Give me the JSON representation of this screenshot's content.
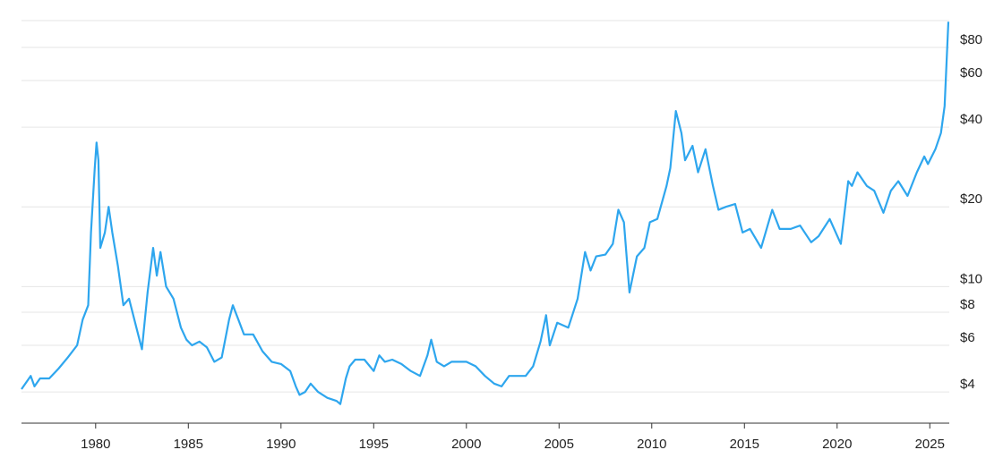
{
  "chart_data": {
    "type": "line",
    "log_y": true,
    "grid": true,
    "color": "#2ea6ee",
    "xlim": [
      1976,
      2026.05
    ],
    "xticks": [
      1980,
      1985,
      1990,
      1995,
      2000,
      2005,
      2010,
      2015,
      2020,
      2025
    ],
    "ylim": [
      3.05,
      105
    ],
    "yticks": [
      {
        "value": 4,
        "label": "$4"
      },
      {
        "value": 6,
        "label": "$6"
      },
      {
        "value": 8,
        "label": "$8"
      },
      {
        "value": 10,
        "label": "$10"
      },
      {
        "value": 20,
        "label": "$20"
      },
      {
        "value": 40,
        "label": "$40"
      },
      {
        "value": 60,
        "label": "$60"
      },
      {
        "value": 80,
        "label": "$80"
      }
    ],
    "x": [
      1976.0,
      1976.5,
      1976.7,
      1977.0,
      1977.5,
      1978.0,
      1978.5,
      1979.0,
      1979.3,
      1979.6,
      1979.75,
      1979.95,
      1980.05,
      1980.15,
      1980.25,
      1980.5,
      1980.7,
      1980.9,
      1981.2,
      1981.5,
      1981.8,
      1982.2,
      1982.5,
      1982.8,
      1983.1,
      1983.3,
      1983.5,
      1983.8,
      1984.2,
      1984.6,
      1984.9,
      1985.2,
      1985.6,
      1986.0,
      1986.4,
      1986.8,
      1987.2,
      1987.4,
      1987.7,
      1988.0,
      1988.5,
      1989.0,
      1989.5,
      1990.0,
      1990.5,
      1990.8,
      1991.0,
      1991.3,
      1991.6,
      1992.0,
      1992.5,
      1993.0,
      1993.2,
      1993.5,
      1993.7,
      1994.0,
      1994.5,
      1995.0,
      1995.3,
      1995.6,
      1996.0,
      1996.5,
      1997.0,
      1997.5,
      1997.9,
      1998.1,
      1998.4,
      1998.8,
      1999.2,
      1999.6,
      2000.0,
      2000.5,
      2001.0,
      2001.5,
      2001.9,
      2002.3,
      2002.8,
      2003.2,
      2003.6,
      2004.0,
      2004.3,
      2004.5,
      2004.9,
      2005.5,
      2006.0,
      2006.4,
      2006.7,
      2007.0,
      2007.5,
      2007.9,
      2008.2,
      2008.5,
      2008.8,
      2009.2,
      2009.6,
      2009.9,
      2010.3,
      2010.8,
      2011.0,
      2011.3,
      2011.6,
      2011.8,
      2012.2,
      2012.5,
      2012.9,
      2013.3,
      2013.6,
      2014.0,
      2014.5,
      2014.9,
      2015.3,
      2015.9,
      2016.5,
      2016.9,
      2017.5,
      2018.0,
      2018.6,
      2019.0,
      2019.6,
      2020.2,
      2020.6,
      2020.8,
      2021.1,
      2021.6,
      2022.0,
      2022.5,
      2022.9,
      2023.3,
      2023.8,
      2024.3,
      2024.7,
      2024.9,
      2025.3,
      2025.6,
      2025.8,
      2026.0
    ],
    "values": [
      4.1,
      4.6,
      4.2,
      4.5,
      4.5,
      4.9,
      5.4,
      6.0,
      7.5,
      8.5,
      16,
      28,
      35,
      30,
      14,
      16,
      20,
      16,
      12,
      8.5,
      9,
      7,
      5.8,
      9.5,
      14,
      11,
      13.5,
      10,
      9,
      7,
      6.3,
      6.0,
      6.2,
      5.9,
      5.2,
      5.4,
      7.5,
      8.5,
      7.5,
      6.6,
      6.6,
      5.7,
      5.2,
      5.1,
      4.8,
      4.2,
      3.9,
      4.0,
      4.3,
      4.0,
      3.8,
      3.7,
      3.6,
      4.5,
      5.0,
      5.3,
      5.3,
      4.8,
      5.5,
      5.2,
      5.3,
      5.1,
      4.8,
      4.6,
      5.5,
      6.3,
      5.2,
      5.0,
      5.2,
      5.2,
      5.2,
      5.0,
      4.6,
      4.3,
      4.2,
      4.6,
      4.6,
      4.6,
      5.0,
      6.2,
      7.8,
      6.0,
      7.3,
      7.0,
      9.0,
      13.5,
      11.5,
      13.0,
      13.2,
      14.5,
      19.5,
      17.5,
      9.5,
      13,
      14,
      17.5,
      18,
      24,
      28,
      46,
      38,
      30,
      34,
      27,
      33,
      24,
      19.5,
      20,
      20.5,
      16,
      16.5,
      14,
      19.5,
      16.5,
      16.5,
      17,
      14.7,
      15.5,
      18,
      14.5,
      25,
      24,
      27,
      24,
      23,
      19,
      23,
      25,
      22,
      27,
      31,
      29,
      33,
      38,
      48,
      100
    ]
  }
}
